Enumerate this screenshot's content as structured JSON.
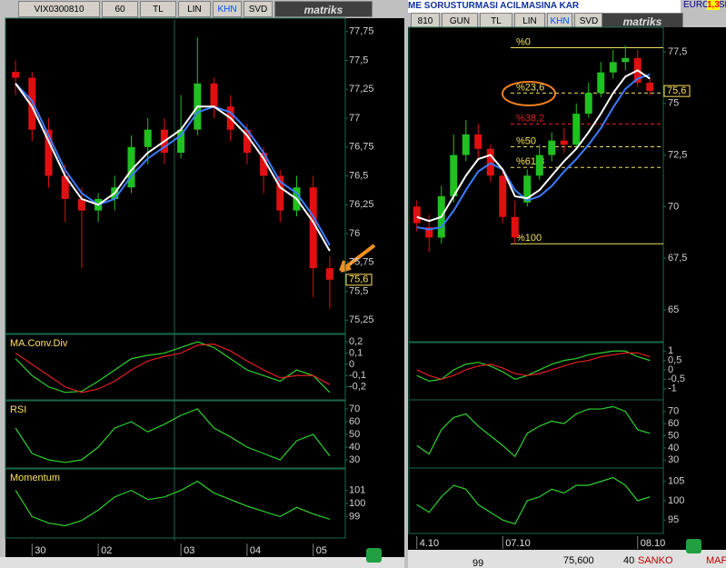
{
  "windows": [
    {
      "toolbar": [
        "VIX0300810",
        "60",
        "TL",
        "LIN",
        "KHN",
        "SVD",
        "matriks"
      ]
    },
    {
      "ticker": "ME SORUSTURMASI ACILMASINA KAR",
      "toolbar": [
        "810",
        "GUN",
        "TL",
        "LIN",
        "KHN",
        "SVD",
        "matriks"
      ],
      "quote_name": "EURO/USD",
      "quote_value": "1,3"
    }
  ],
  "status": [
    "99",
    "75,600",
    "40",
    "SANKO",
    "MAF"
  ],
  "chart_data": [
    {
      "type": "candlestick",
      "open": [
        77.4,
        77.35,
        76.9,
        76.5,
        76.3,
        76.2,
        76.3,
        76.4,
        76.75,
        76.9,
        76.7,
        76.9,
        77.3,
        77.1,
        76.9,
        76.7,
        76.5,
        76.2,
        76.4,
        75.7
      ],
      "high": [
        77.5,
        77.4,
        77.0,
        76.6,
        76.4,
        76.35,
        76.5,
        76.85,
        77.0,
        77.0,
        77.2,
        77.7,
        77.35,
        77.2,
        76.95,
        76.75,
        76.55,
        76.5,
        76.5,
        75.8
      ],
      "low": [
        77.2,
        76.8,
        76.4,
        76.1,
        75.7,
        76.1,
        76.2,
        76.35,
        76.6,
        76.6,
        76.65,
        76.85,
        77.0,
        76.8,
        76.6,
        76.35,
        76.1,
        76.15,
        75.45,
        75.35
      ],
      "close": [
        77.35,
        76.9,
        76.5,
        76.3,
        76.2,
        76.3,
        76.4,
        76.75,
        76.9,
        76.7,
        76.9,
        77.3,
        77.1,
        76.9,
        76.7,
        76.5,
        76.2,
        76.4,
        75.7,
        75.6
      ],
      "series": [
        {
          "color": "#3a7bff",
          "values": [
            77.3,
            77.15,
            76.85,
            76.55,
            76.35,
            76.25,
            76.3,
            76.5,
            76.65,
            76.75,
            76.85,
            77.05,
            77.1,
            77.05,
            76.9,
            76.7,
            76.45,
            76.35,
            76.15,
            75.9
          ]
        },
        {
          "color": "#ffffff",
          "values": [
            77.3,
            77.1,
            76.8,
            76.5,
            76.3,
            76.25,
            76.35,
            76.55,
            76.7,
            76.8,
            76.9,
            77.1,
            77.1,
            77.0,
            76.85,
            76.65,
            76.4,
            76.3,
            76.1,
            75.85
          ]
        }
      ],
      "ylim": [
        75.15,
        77.85
      ],
      "yticks": [
        {
          "value": 75.25,
          "label": "75,25"
        },
        {
          "value": 75.5,
          "label": "75,5"
        },
        {
          "value": 75.75,
          "label": "75,75"
        },
        {
          "value": 76,
          "label": "76"
        },
        {
          "value": 76.25,
          "label": "76,25"
        },
        {
          "value": 76.5,
          "label": "76,5"
        },
        {
          "value": 76.75,
          "label": "76,75"
        },
        {
          "value": 77,
          "label": "77"
        },
        {
          "value": 77.25,
          "label": "77,25"
        },
        {
          "value": 77.5,
          "label": "77,5"
        },
        {
          "value": 77.75,
          "label": "77,75"
        }
      ],
      "last_label": {
        "value": 75.6,
        "label": "75,6"
      }
    },
    {
      "type": "line",
      "title": "MA.Conv.Div",
      "series": [
        {
          "color": "#30d030",
          "values": [
            0.05,
            -0.1,
            -0.2,
            -0.25,
            -0.24,
            -0.15,
            -0.05,
            0.05,
            0.08,
            0.1,
            0.15,
            0.2,
            0.15,
            0.05,
            -0.05,
            -0.1,
            -0.15,
            -0.05,
            -0.1,
            -0.25
          ]
        },
        {
          "color": "#e02020",
          "values": [
            0.1,
            0.0,
            -0.1,
            -0.2,
            -0.25,
            -0.22,
            -0.15,
            -0.05,
            0.03,
            0.07,
            0.1,
            0.17,
            0.18,
            0.12,
            0.03,
            -0.05,
            -0.12,
            -0.1,
            -0.1,
            -0.18
          ]
        }
      ],
      "ylim": [
        -0.3,
        0.25
      ],
      "yticks": [
        {
          "value": 0.2,
          "label": "0,2"
        },
        {
          "value": 0.1,
          "label": "0,1"
        },
        0,
        {
          "value": -0.1,
          "label": "-0,1"
        },
        {
          "value": -0.2,
          "label": "-0,2"
        }
      ]
    },
    {
      "type": "line",
      "title": "RSI",
      "series": [
        {
          "color": "#30d030",
          "values": [
            55,
            35,
            30,
            28,
            30,
            40,
            55,
            60,
            52,
            58,
            65,
            70,
            55,
            48,
            40,
            35,
            30,
            45,
            50,
            33
          ]
        }
      ],
      "ylim": [
        25,
        75
      ],
      "yticks": [
        30,
        40,
        50,
        60,
        70
      ]
    },
    {
      "type": "line",
      "title": "Momentum",
      "series": [
        {
          "color": "#30d030",
          "values": [
            101,
            99,
            98.5,
            98.3,
            98.7,
            99.5,
            100.5,
            101,
            100.3,
            100.5,
            101,
            101.7,
            100.8,
            100.3,
            99.8,
            99.4,
            99,
            99.7,
            99.2,
            98.8
          ]
        }
      ],
      "ylim": [
        97.5,
        102.5
      ],
      "yticks": [
        99,
        100,
        101
      ],
      "xticks": [
        {
          "value": 1,
          "label": "30"
        },
        {
          "value": 5,
          "label": "02"
        },
        {
          "value": 10,
          "label": "03"
        },
        {
          "value": 14,
          "label": "04"
        },
        {
          "value": 18,
          "label": "05"
        }
      ]
    },
    {
      "type": "candlestick",
      "open": [
        70,
        69,
        68.5,
        70.5,
        72.5,
        73.5,
        72.8,
        71.5,
        69.5,
        70.2,
        71.5,
        72.5,
        73.2,
        73,
        74.5,
        75.5,
        76.5,
        77,
        77.2,
        76
      ],
      "high": [
        70.3,
        69.6,
        71,
        73.5,
        74.2,
        74,
        73,
        71.8,
        70.3,
        71.8,
        73,
        73.6,
        73.8,
        75,
        76,
        77,
        77.6,
        77.8,
        77.6,
        76.2
      ],
      "low": [
        68.8,
        67.8,
        68.2,
        70.2,
        72.2,
        72.3,
        71.2,
        69.2,
        68.2,
        70,
        71.3,
        72.2,
        72.6,
        72.8,
        74.3,
        75.3,
        76.2,
        76.6,
        75.8,
        75.4
      ],
      "close": [
        69.2,
        68.5,
        70.5,
        72.5,
        73.5,
        72.8,
        71.5,
        69.5,
        68.5,
        71.5,
        72.5,
        73.2,
        73,
        74.5,
        75.5,
        76.5,
        77,
        77.2,
        76,
        75.6
      ],
      "series": [
        {
          "color": "#3a7bff",
          "values": [
            69,
            68.9,
            69,
            69.8,
            70.8,
            71.7,
            72.1,
            71.8,
            70.8,
            70.3,
            70.5,
            71,
            71.7,
            72.3,
            73,
            73.8,
            74.8,
            75.7,
            76.2,
            76.4
          ]
        },
        {
          "color": "#ffffff",
          "values": [
            69.5,
            69.3,
            69.5,
            70.5,
            71.5,
            72.3,
            72.5,
            71.8,
            70.5,
            70.4,
            70.8,
            71.5,
            72.2,
            72.8,
            73.6,
            74.5,
            75.5,
            76.3,
            76.6,
            76.2
          ]
        }
      ],
      "ylim": [
        63.5,
        78.6
      ],
      "yticks": [
        65,
        {
          "value": 67.5,
          "label": "67,5"
        },
        70,
        {
          "value": 72.5,
          "label": "72,5"
        },
        75,
        {
          "value": 77.5,
          "label": "77,5"
        }
      ],
      "last_label": {
        "value": 75.6,
        "label": "75,6"
      },
      "levels": [
        {
          "value": 77.7,
          "label": "%0",
          "color": "#f0e060"
        },
        {
          "value": 75.5,
          "label": "%23,6",
          "color": "#f0e060"
        },
        {
          "value": 74.0,
          "label": "%38,2",
          "color": "#e02020"
        },
        {
          "value": 72.9,
          "label": "%50",
          "color": "#f0e060"
        },
        {
          "value": 71.9,
          "label": "%61,8",
          "color": "#f0e060"
        },
        {
          "value": 68.2,
          "label": "%100",
          "color": "#f0e060"
        }
      ]
    },
    {
      "type": "line",
      "series": [
        {
          "color": "#30d030",
          "values": [
            -0.3,
            -0.6,
            -0.5,
            0,
            0.3,
            0.4,
            0.2,
            -0.1,
            -0.5,
            -0.3,
            0,
            0.3,
            0.5,
            0.6,
            0.8,
            0.9,
            1.0,
            1.0,
            0.7,
            0.5
          ]
        },
        {
          "color": "#e02020",
          "values": [
            0.0,
            -0.3,
            -0.5,
            -0.3,
            0,
            0.2,
            0.3,
            0.1,
            -0.2,
            -0.3,
            -0.2,
            0,
            0.2,
            0.4,
            0.5,
            0.7,
            0.8,
            0.9,
            0.9,
            0.7
          ]
        }
      ],
      "ylim": [
        -1.5,
        1.4
      ],
      "yticks": [
        1,
        {
          "value": 0.5,
          "label": "0,5"
        },
        0,
        {
          "value": -0.5,
          "label": "-0,5"
        },
        -1
      ]
    },
    {
      "type": "line",
      "series": [
        {
          "color": "#30d030",
          "values": [
            42,
            35,
            55,
            65,
            68,
            58,
            50,
            42,
            33,
            52,
            58,
            62,
            60,
            68,
            72,
            72,
            74,
            70,
            55,
            52
          ]
        }
      ],
      "ylim": [
        25,
        78
      ],
      "yticks": [
        30,
        40,
        50,
        60,
        70
      ]
    },
    {
      "type": "line",
      "series": [
        {
          "color": "#30d030",
          "values": [
            99,
            97,
            101,
            104,
            103,
            99,
            97,
            95,
            94,
            100,
            101,
            103,
            102,
            104,
            104,
            105,
            106,
            104,
            100,
            101
          ]
        }
      ],
      "ylim": [
        92,
        108
      ],
      "yticks": [
        95,
        100,
        105
      ],
      "xticks": [
        {
          "value": 0,
          "label": "4.10"
        },
        {
          "value": 7,
          "label": "07.10"
        },
        {
          "value": 18,
          "label": "08.10"
        }
      ]
    }
  ]
}
